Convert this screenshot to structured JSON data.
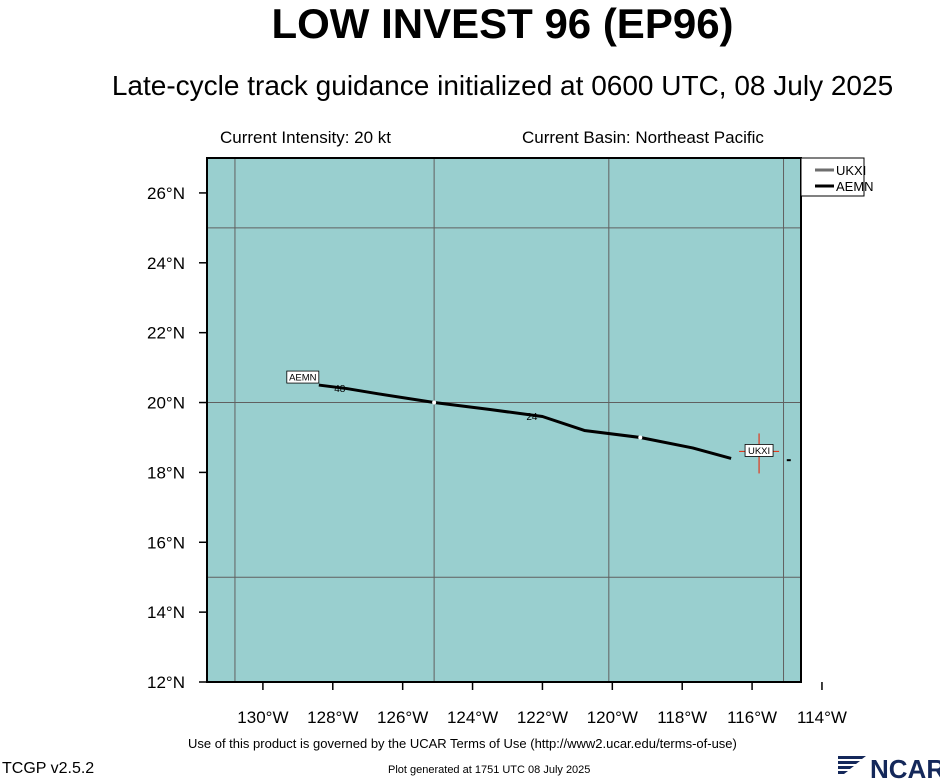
{
  "header": {
    "title": "LOW INVEST 96 (EP96)",
    "subtitle": "Late-cycle track guidance initialized at 0600 UTC, 08 July 2025",
    "intensity": "Current Intensity: 20 kt",
    "basin": "Current Basin: Northeast Pacific"
  },
  "footer": {
    "terms": "Use of this product is governed by the UCAR Terms of Use (http://www2.ucar.edu/terms-of-use)",
    "version": "TCGP v2.5.2",
    "generated": "Plot generated at 1751 UTC   08 July 2025",
    "logo_text": "NCAR"
  },
  "colors": {
    "ocean": "#99cfcf",
    "grid": "#606060",
    "track_aemn": "#000000",
    "track_ukxi": "#6e6e6e",
    "current_marker": "#e03a1e"
  },
  "chart_data": {
    "type": "line",
    "xlim": [
      -131.6,
      -114.6
    ],
    "ylim": [
      12,
      27
    ],
    "x_ticks": [
      -130,
      -128,
      -126,
      -124,
      -122,
      -120,
      -118,
      -116,
      -114
    ],
    "x_tick_labels": [
      "130°W",
      "128°W",
      "126°W",
      "124°W",
      "122°W",
      "120°W",
      "118°W",
      "116°W",
      "114°W"
    ],
    "y_ticks": [
      12,
      14,
      16,
      18,
      20,
      22,
      24,
      26
    ],
    "y_tick_labels": [
      "12°N",
      "14°N",
      "16°N",
      "18°N",
      "20°N",
      "22°N",
      "24°N",
      "26°N"
    ],
    "grid_lon": [
      -130.8,
      -125.1,
      -120.1,
      -115.1
    ],
    "grid_lat": [
      15,
      20,
      25
    ],
    "legend": {
      "position": "top-right",
      "entries": [
        "UKXI",
        "AEMN"
      ]
    },
    "series": [
      {
        "name": "AEMN",
        "x": [
          -116.6,
          -117.7,
          -119.2,
          -120.8,
          -122.0,
          -123.5,
          -125.1,
          -126.7,
          -127.6,
          -128.4
        ],
        "y": [
          18.4,
          18.7,
          19.0,
          19.2,
          19.6,
          19.8,
          20.0,
          20.25,
          20.4,
          20.5
        ],
        "end_label": "AEMN",
        "dots": [
          [
            -125.1,
            20.0
          ],
          [
            -119.2,
            19.0
          ]
        ],
        "hour_labels": [
          {
            "text": "48",
            "x": -127.8,
            "y": 20.3
          },
          {
            "text": "24",
            "x": -122.3,
            "y": 19.5
          }
        ]
      },
      {
        "name": "UKXI",
        "x": [
          -114.95
        ],
        "y": [
          18.35
        ],
        "end_label": "UKXI"
      }
    ],
    "current_position": {
      "x": -115.8,
      "y": 18.6
    }
  }
}
